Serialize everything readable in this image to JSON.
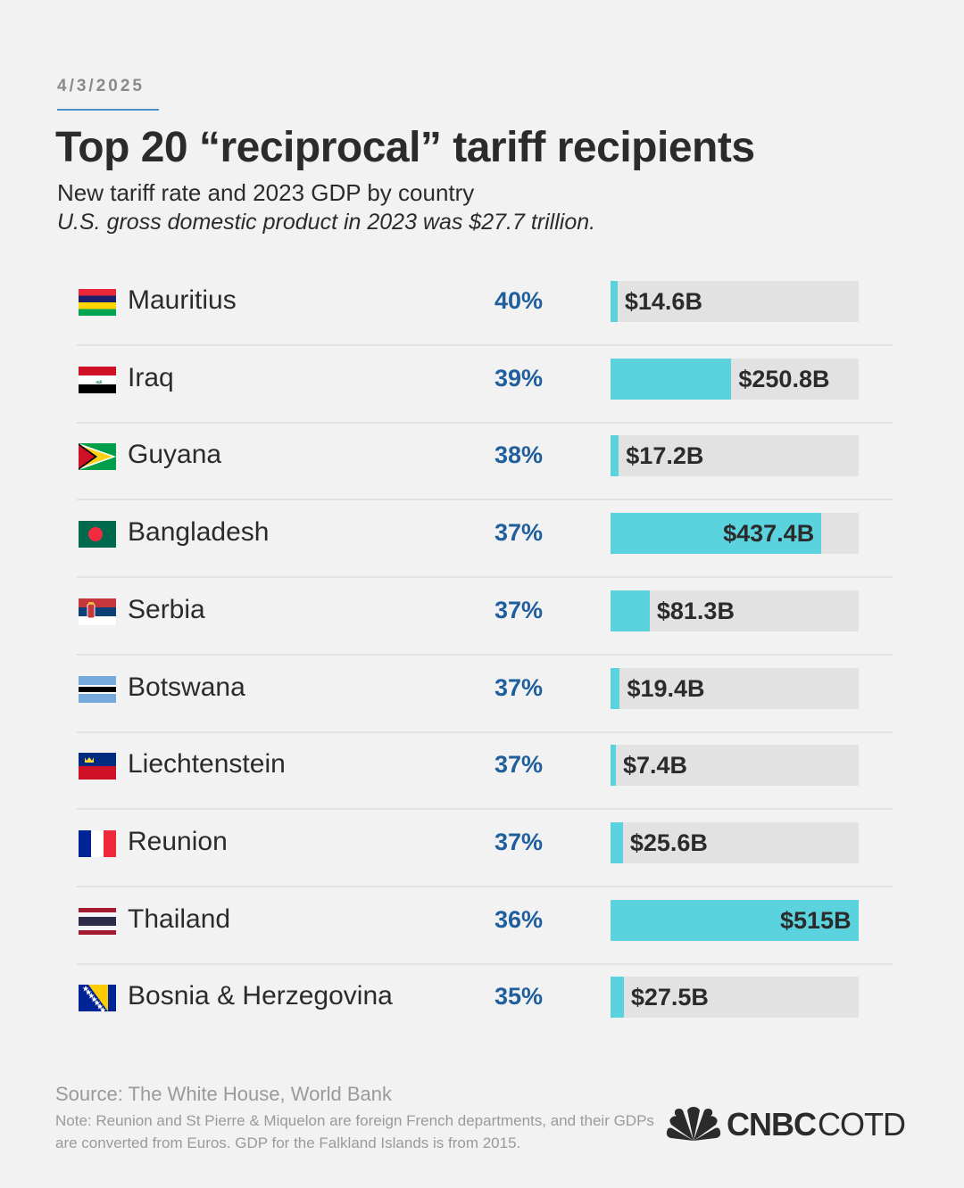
{
  "date": "4/3/2025",
  "title": "Top 20 “reciprocal” tariff recipients",
  "subtitle": "New tariff rate and 2023 GDP by country",
  "note_top": "U.S. gross domestic product in 2023 was $27.7 trillion.",
  "chart_data": {
    "type": "bar",
    "title": "Top 20 “reciprocal” tariff recipients",
    "xlabel": "",
    "ylabel": "",
    "unit": "billion USD",
    "xlim": [
      0,
      515
    ],
    "categories": [
      "Mauritius",
      "Iraq",
      "Guyana",
      "Bangladesh",
      "Serbia",
      "Botswana",
      "Liechtenstein",
      "Reunion",
      "Thailand",
      "Bosnia & Herzegovina"
    ],
    "series": [
      {
        "name": "",
        "values": [
          14.6,
          250.8,
          17.2,
          437.4,
          81.3,
          19.4,
          7.4,
          25.6,
          515,
          27.5
        ],
        "labels": [
          "$14.6B",
          "$250.8B",
          "$17.2B",
          "$437.4B",
          "$81.3B",
          "$19.4B",
          "$7.4B",
          "$25.6B",
          "$515B",
          "$27.5B"
        ]
      }
    ],
    "tariff_rates": [
      "40%",
      "39%",
      "38%",
      "37%",
      "37%",
      "37%",
      "37%",
      "37%",
      "36%",
      "35%"
    ],
    "flags": [
      "mauritius-flag",
      "iraq-flag",
      "guyana-flag",
      "bangladesh-flag",
      "serbia-flag",
      "botswana-flag",
      "liechtenstein-flag",
      "reunion-flag",
      "thailand-flag",
      "bosnia-herzegovina-flag"
    ],
    "bar_color": "#5bd3df",
    "track_color": "#e2e2e2",
    "rate_color": "#1f5f9e",
    "grid": false,
    "legend": "none"
  },
  "source": "Source: The White House, World Bank",
  "footnote": "Note: Reunion and St Pierre & Miquelon are foreign French departments, and their GDPs are converted from Euros. GDP for the Falkland Islands is from 2015.",
  "logo": {
    "brand": "CNBC",
    "suffix": "COTD",
    "icon": "peacock-icon"
  }
}
